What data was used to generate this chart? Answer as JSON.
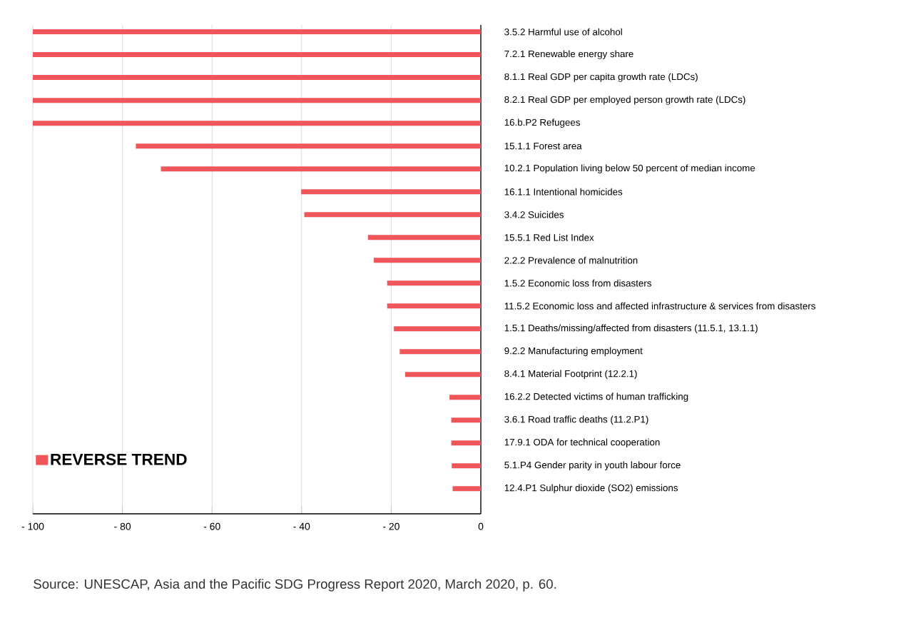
{
  "chart_data": {
    "type": "bar",
    "orientation": "horizontal",
    "categories": [
      "3.5.2 Harmful use of alcohol",
      "7.2.1 Renewable energy share",
      "8.1.1 Real GDP per capita growth rate (LDCs)",
      "8.2.1 Real GDP per employed person growth rate (LDCs)",
      "16.b.P2 Refugees",
      "15.1.1 Forest area",
      "10.2.1 Population living below 50 percent of median income",
      "16.1.1 Intentional homicides",
      "3.4.2 Suicides",
      "15.5.1 Red List Index",
      "2.2.2 Prevalence of malnutrition",
      "1.5.2 Economic loss from disasters",
      "11.5.2 Economic loss and affected infrastructure & services from disasters",
      "1.5.1 Deaths/missing/affected from disasters (11.5.1, 13.1.1)",
      "9.2.2 Manufacturing employment",
      "8.4.1 Material Footprint (12.2.1)",
      "16.2.2 Detected victims of human trafficking",
      "3.6.1 Road traffic deaths (11.2.P1)",
      "17.9.1 ODA for technical cooperation",
      "5.1.P4 Gender parity in youth labour force",
      "12.4.P1 Sulphur dioxide (SO2) emissions"
    ],
    "series": [
      {
        "name": "REVERSE TREND",
        "color": "#f0555a",
        "values": [
          -100,
          -100,
          -100,
          -100,
          -100,
          -77,
          -71.4,
          -40.1,
          -39.4,
          -25.2,
          -23.9,
          -20.9,
          -20.9,
          -19.4,
          -18.1,
          -16.9,
          -7.0,
          -6.6,
          -6.6,
          -6.5,
          -6.3
        ]
      }
    ],
    "xlim": [
      -100,
      0
    ],
    "xticks": [
      {
        "value": -100,
        "label": "- 100"
      },
      {
        "value": -80,
        "label": "- 80"
      },
      {
        "value": -60,
        "label": "- 60"
      },
      {
        "value": -40,
        "label": "- 40"
      },
      {
        "value": -20,
        "label": "- 20"
      },
      0
    ],
    "grid": "x",
    "legend": "bottom left",
    "annotations": [
      "Source: UNESCAP, Asia and the Pacific SDG Progress Report 2020, March 2020, p. 60."
    ]
  }
}
